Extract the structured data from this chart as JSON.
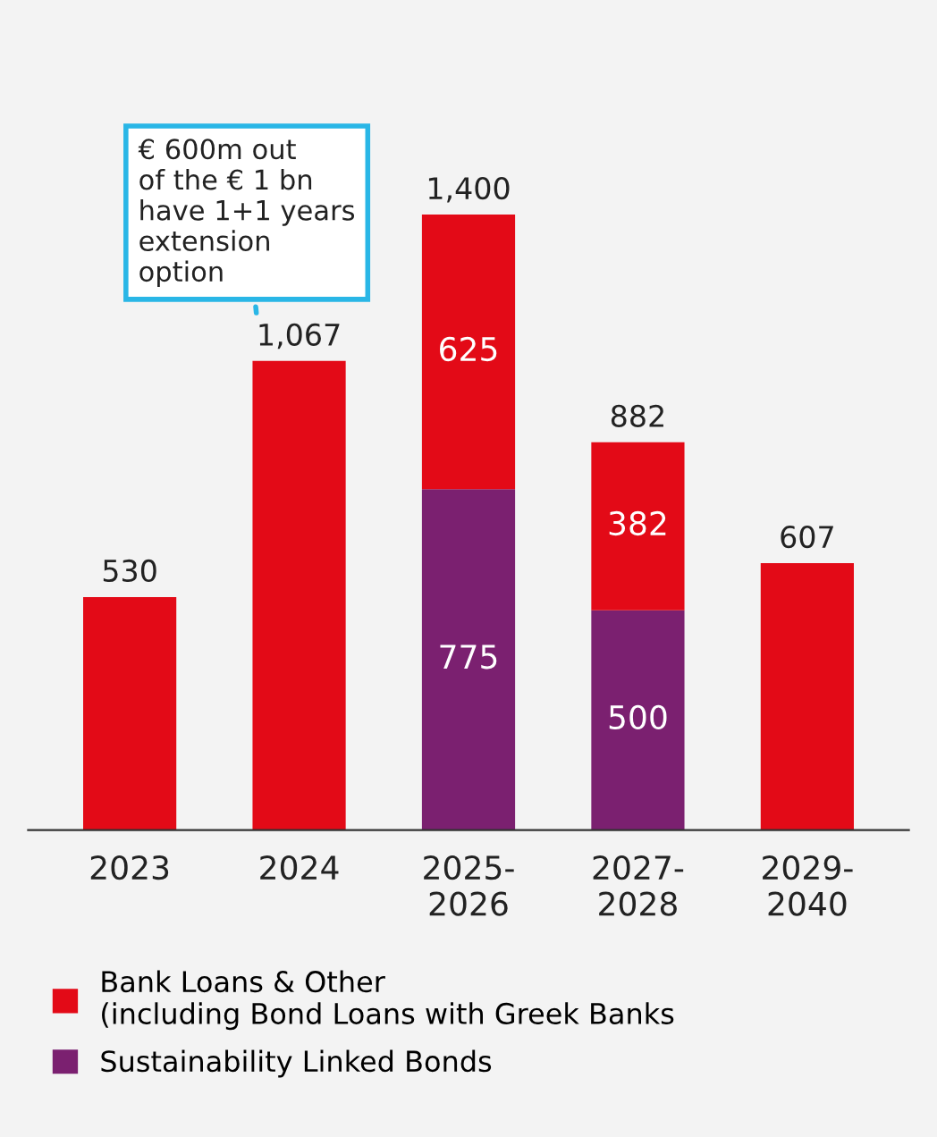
{
  "chart_data": {
    "type": "bar",
    "stacked": true,
    "categories": [
      "2023",
      "2024",
      "2025-\n2026",
      "2027-\n2028",
      "2029-\n2040"
    ],
    "series": [
      {
        "name": "Sustainability Linked Bonds",
        "color": "#7b2070",
        "values": [
          null,
          null,
          775,
          500,
          null
        ],
        "value_labels": [
          null,
          null,
          "775",
          "500",
          null
        ]
      },
      {
        "name": "Bank Loans & Other\n(including Bond Loans with Greek Banks",
        "color": "#e30a17",
        "values": [
          530,
          1067,
          625,
          382,
          607
        ],
        "value_labels": [
          null,
          null,
          "625",
          "382",
          null
        ]
      }
    ],
    "totals": [
      "530",
      "1,067",
      "1,400",
      "882",
      "607"
    ],
    "annotations": [
      {
        "text": "€ 600m out\nof the € 1 bn\nhave 1+1 years\nextension\noption",
        "x": "2024",
        "y": 1067
      }
    ],
    "legend": "bottom",
    "grid": false
  }
}
